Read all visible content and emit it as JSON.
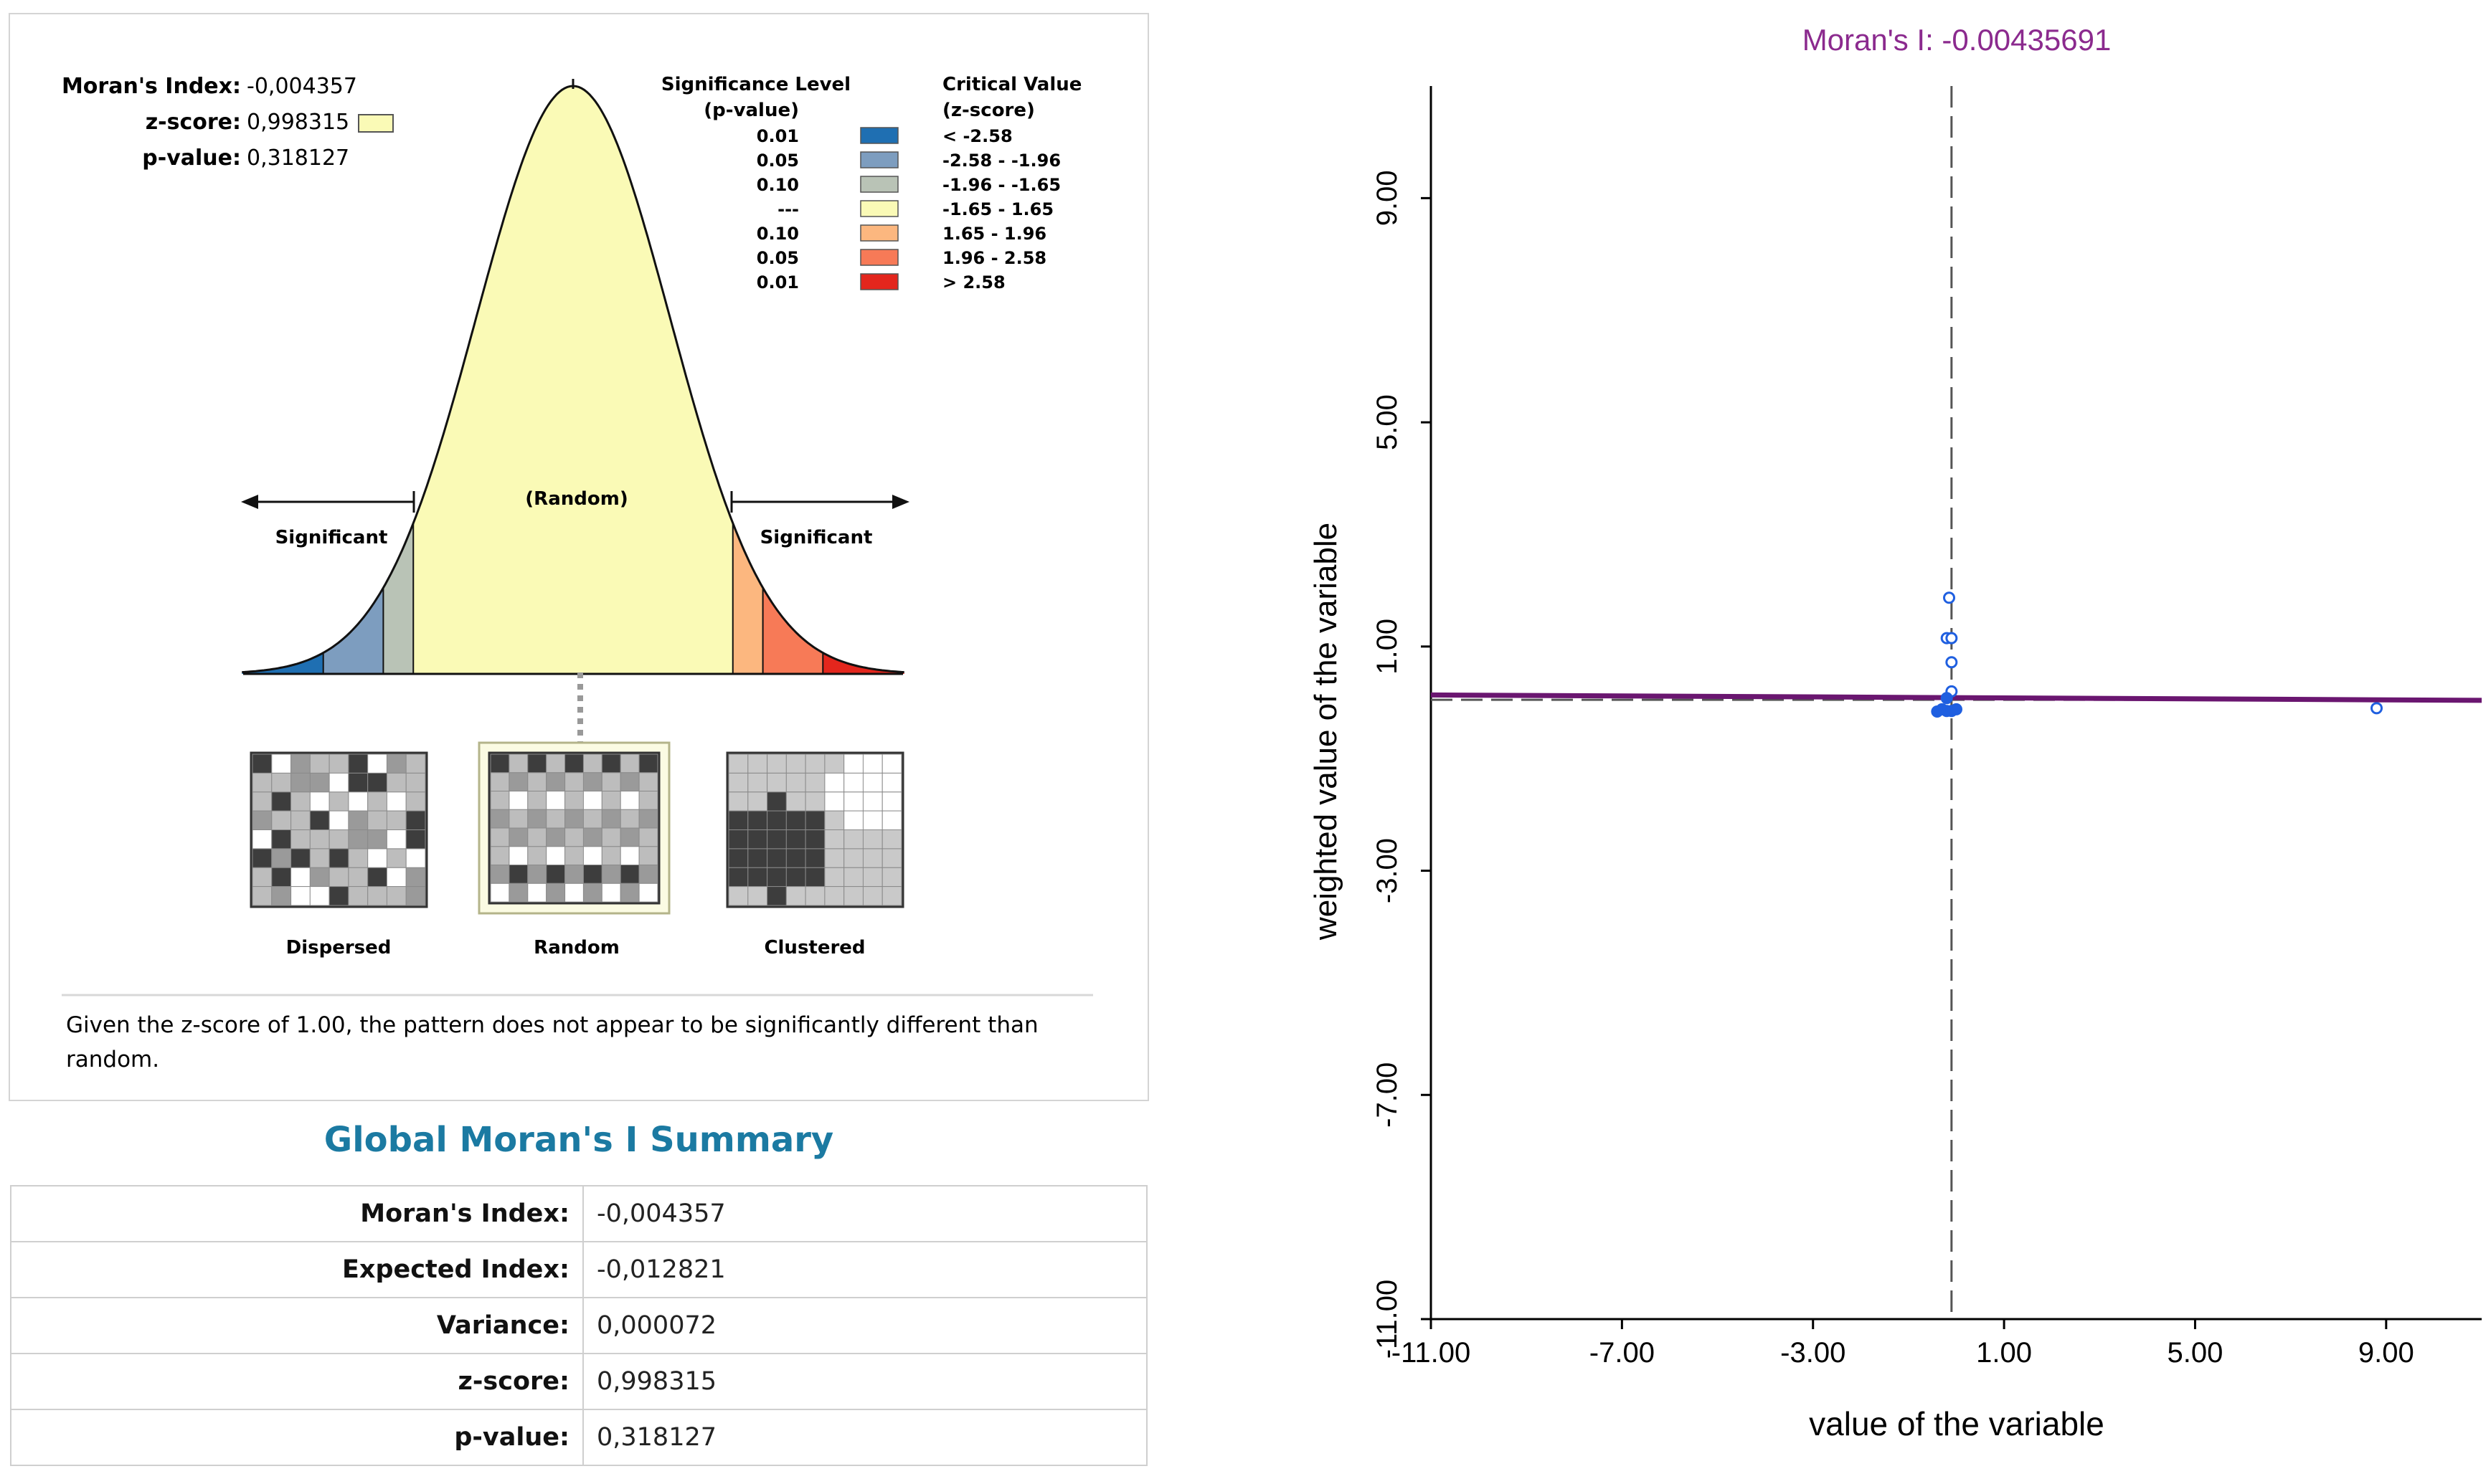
{
  "report": {
    "stats": [
      {
        "label": "Moran's Index:",
        "value": "-0,004357"
      },
      {
        "label": "z-score:",
        "value": "0,998315"
      },
      {
        "label": "p-value:",
        "value": "0,318127"
      }
    ],
    "legend": {
      "pvalue_header": [
        "Significance Level",
        "(p-value)"
      ],
      "zscore_header": [
        "Critical Value",
        "(z-score)"
      ],
      "rows": [
        {
          "p": "0.01",
          "z": "< -2.58",
          "color": "#1f6fb2"
        },
        {
          "p": "0.05",
          "z": "-2.58 - -1.96",
          "color": "#7d9dbf"
        },
        {
          "p": "0.10",
          "z": "-1.96 - -1.65",
          "color": "#b9c3b6"
        },
        {
          "p": "---",
          "z": "-1.65 - 1.65",
          "color": "#fafab6"
        },
        {
          "p": "0.10",
          "z": "1.65 - 1.96",
          "color": "#fcb77f"
        },
        {
          "p": "0.05",
          "z": "1.96 - 2.58",
          "color": "#f77a57"
        },
        {
          "p": "0.01",
          "z": "> 2.58",
          "color": "#e3261d"
        }
      ]
    },
    "curve_labels": {
      "random": "(Random)",
      "significant_left": "Significant",
      "significant_right": "Significant"
    },
    "maps": [
      {
        "label": "Dispersed"
      },
      {
        "label": "Random"
      },
      {
        "label": "Clustered"
      }
    ],
    "conclusion": [
      "Given the z-score of 1.00, the pattern does not appear to be significantly different than",
      "random."
    ]
  },
  "summary": {
    "title": "Global Moran's I Summary",
    "rows": [
      {
        "label": "Moran's Index:",
        "value": "-0,004357"
      },
      {
        "label": "Expected Index:",
        "value": "-0,012821"
      },
      {
        "label": "Variance:",
        "value": "0,000072"
      },
      {
        "label": "z-score:",
        "value": "0,998315"
      },
      {
        "label": "p-value:",
        "value": "0,318127"
      }
    ]
  },
  "chart_data": {
    "type": "scatter",
    "title": "Moran's I: -0.00435691",
    "xlabel": "value of the variable",
    "ylabel": "weighted value of the variable",
    "xlim": [
      -11,
      11
    ],
    "ylim": [
      -11,
      11
    ],
    "xticks": [
      "-11.00",
      "-7.00",
      "-3.00",
      "1.00",
      "5.00",
      "9.00"
    ],
    "yticks": [
      "-11.00",
      "-7.00",
      "-3.00",
      "1.00",
      "5.00",
      "9.00"
    ],
    "x_tick_values": [
      -11,
      -7,
      -3,
      1,
      5,
      9
    ],
    "y_tick_values": [
      -11,
      -7,
      -3,
      1,
      5,
      9
    ],
    "mean_x": -0.1,
    "mean_y": 0.05,
    "slope": -0.00435691,
    "points": [
      {
        "x": -0.15,
        "y": 1.87
      },
      {
        "x": -0.2,
        "y": 1.15
      },
      {
        "x": -0.1,
        "y": 1.15
      },
      {
        "x": -0.1,
        "y": 0.72
      },
      {
        "x": -0.1,
        "y": 0.2
      },
      {
        "x": -0.2,
        "y": 0.08
      },
      {
        "x": -0.3,
        "y": -0.12
      },
      {
        "x": -0.2,
        "y": -0.15
      },
      {
        "x": -0.1,
        "y": -0.15
      },
      {
        "x": 0.0,
        "y": -0.12
      },
      {
        "x": -0.4,
        "y": -0.16
      },
      {
        "x": 8.8,
        "y": -0.1
      }
    ],
    "colors": {
      "title": "#8b2a8e",
      "regression": "#6a1670",
      "points": "#1f5fe0",
      "axis": "#000000"
    }
  }
}
